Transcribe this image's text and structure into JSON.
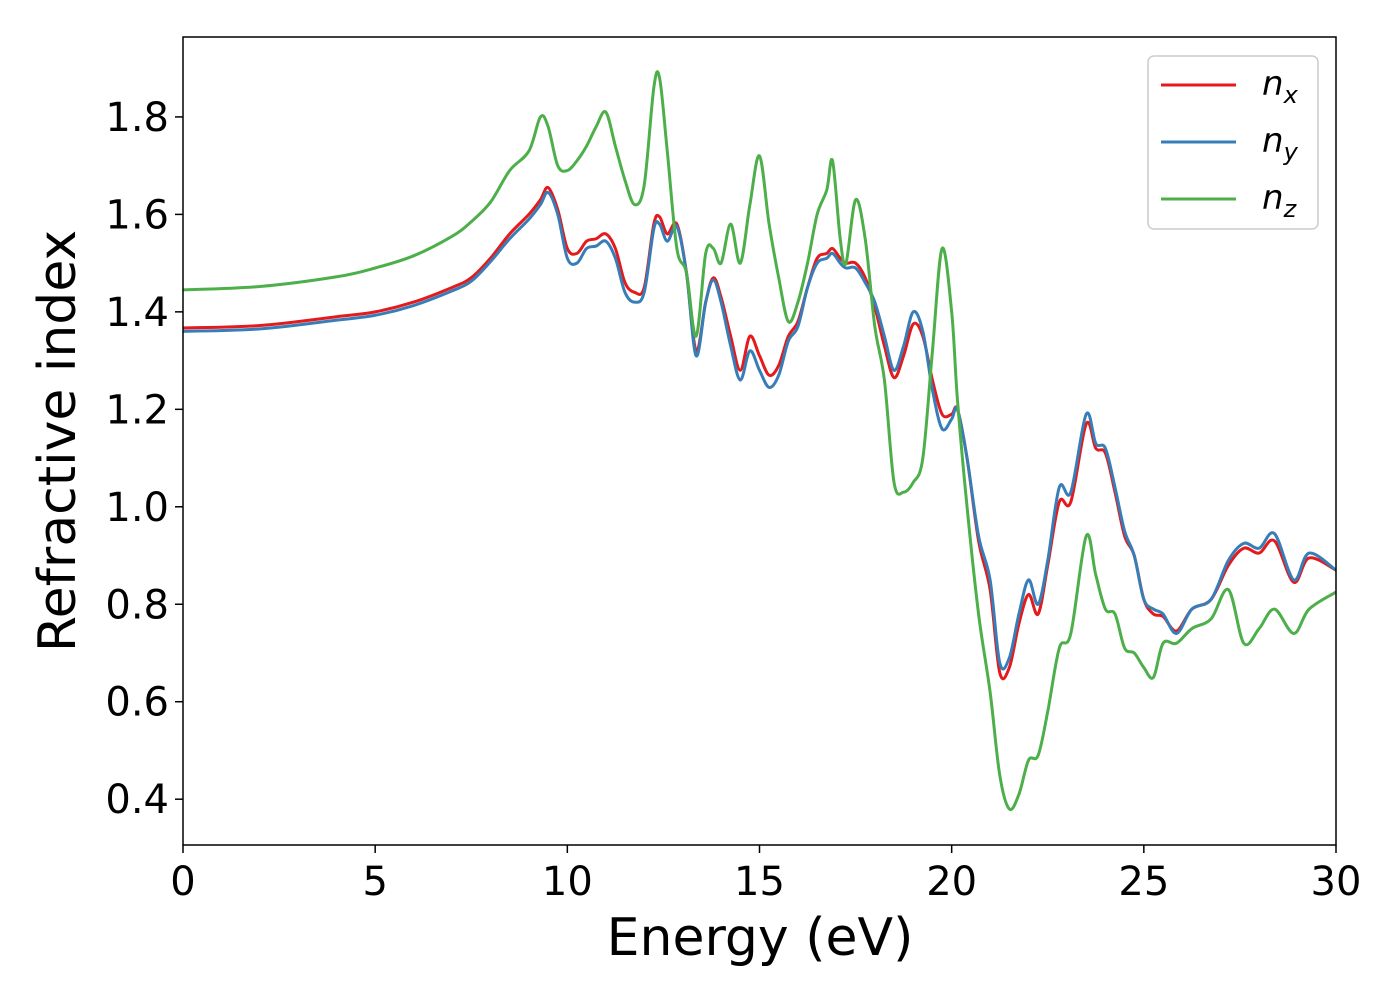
{
  "chart_data": {
    "type": "line",
    "xlabel": "Energy (eV)",
    "ylabel": "Refractive index",
    "x": [
      0,
      2,
      4,
      5,
      6,
      7,
      7.5,
      8,
      8.5,
      9,
      9.3,
      9.5,
      9.75,
      10,
      10.25,
      10.5,
      10.75,
      11,
      11.25,
      11.5,
      11.75,
      12,
      12.25,
      12.4,
      12.6,
      12.85,
      13.1,
      13.35,
      13.6,
      13.8,
      14,
      14.25,
      14.5,
      14.75,
      15,
      15.25,
      15.5,
      15.75,
      16,
      16.25,
      16.5,
      16.75,
      16.9,
      17.1,
      17.25,
      17.5,
      17.75,
      18,
      18.25,
      18.5,
      18.75,
      19,
      19.25,
      19.5,
      19.75,
      20,
      20.15,
      20.4,
      20.7,
      21,
      21.25,
      21.5,
      21.75,
      22,
      22.25,
      22.5,
      22.8,
      23.1,
      23.5,
      23.75,
      24,
      24.25,
      24.5,
      24.75,
      25,
      25.25,
      25.5,
      25.85,
      26.25,
      26.75,
      27.2,
      27.6,
      28,
      28.4,
      28.9,
      29.3,
      30
    ],
    "series": [
      {
        "name": "nx",
        "color": "#e41a1c",
        "values": [
          1.367,
          1.372,
          1.39,
          1.4,
          1.42,
          1.45,
          1.47,
          1.51,
          1.56,
          1.6,
          1.63,
          1.655,
          1.61,
          1.53,
          1.52,
          1.545,
          1.55,
          1.56,
          1.53,
          1.46,
          1.44,
          1.45,
          1.58,
          1.595,
          1.56,
          1.58,
          1.48,
          1.32,
          1.42,
          1.47,
          1.43,
          1.35,
          1.28,
          1.35,
          1.31,
          1.27,
          1.29,
          1.35,
          1.38,
          1.45,
          1.51,
          1.52,
          1.53,
          1.51,
          1.5,
          1.5,
          1.47,
          1.41,
          1.33,
          1.265,
          1.31,
          1.375,
          1.35,
          1.26,
          1.19,
          1.19,
          1.2,
          1.1,
          0.93,
          0.83,
          0.66,
          0.67,
          0.76,
          0.82,
          0.78,
          0.88,
          1.01,
          1.01,
          1.17,
          1.12,
          1.11,
          1.03,
          0.94,
          0.9,
          0.81,
          0.78,
          0.775,
          0.745,
          0.79,
          0.81,
          0.88,
          0.915,
          0.905,
          0.93,
          0.845,
          0.895,
          0.87
        ]
      },
      {
        "name": "ny",
        "color": "#377eb8",
        "values": [
          1.36,
          1.365,
          1.383,
          1.393,
          1.413,
          1.443,
          1.463,
          1.503,
          1.55,
          1.59,
          1.62,
          1.645,
          1.6,
          1.51,
          1.5,
          1.53,
          1.535,
          1.545,
          1.51,
          1.44,
          1.42,
          1.44,
          1.57,
          1.58,
          1.545,
          1.575,
          1.48,
          1.31,
          1.42,
          1.465,
          1.42,
          1.33,
          1.26,
          1.32,
          1.28,
          1.245,
          1.27,
          1.34,
          1.37,
          1.45,
          1.5,
          1.51,
          1.52,
          1.5,
          1.49,
          1.49,
          1.46,
          1.42,
          1.35,
          1.28,
          1.33,
          1.4,
          1.36,
          1.24,
          1.16,
          1.18,
          1.2,
          1.1,
          0.94,
          0.85,
          0.68,
          0.69,
          0.78,
          0.85,
          0.8,
          0.89,
          1.04,
          1.03,
          1.19,
          1.13,
          1.12,
          1.04,
          0.95,
          0.9,
          0.81,
          0.79,
          0.78,
          0.74,
          0.79,
          0.81,
          0.89,
          0.925,
          0.915,
          0.945,
          0.85,
          0.905,
          0.87
        ]
      },
      {
        "name": "nz",
        "color": "#4daf4a",
        "values": [
          1.445,
          1.452,
          1.472,
          1.49,
          1.515,
          1.555,
          1.585,
          1.625,
          1.69,
          1.73,
          1.8,
          1.78,
          1.7,
          1.69,
          1.71,
          1.74,
          1.78,
          1.81,
          1.74,
          1.67,
          1.62,
          1.66,
          1.86,
          1.88,
          1.73,
          1.53,
          1.48,
          1.35,
          1.52,
          1.53,
          1.5,
          1.58,
          1.5,
          1.62,
          1.72,
          1.58,
          1.47,
          1.38,
          1.42,
          1.5,
          1.6,
          1.65,
          1.71,
          1.55,
          1.5,
          1.63,
          1.55,
          1.37,
          1.26,
          1.05,
          1.03,
          1.05,
          1.1,
          1.32,
          1.53,
          1.4,
          1.22,
          1.0,
          0.78,
          0.62,
          0.45,
          0.38,
          0.41,
          0.48,
          0.49,
          0.58,
          0.71,
          0.74,
          0.94,
          0.86,
          0.79,
          0.78,
          0.71,
          0.7,
          0.67,
          0.65,
          0.72,
          0.72,
          0.75,
          0.77,
          0.83,
          0.72,
          0.75,
          0.79,
          0.74,
          0.79,
          0.825
        ]
      }
    ],
    "xlim": [
      0,
      30
    ],
    "xticks": [
      0,
      5,
      10,
      15,
      20,
      25,
      30
    ],
    "ylim": [
      0.306,
      1.964
    ],
    "yticks": [
      0.4,
      0.6,
      0.8,
      {
        "value": 1,
        "label": "1.0"
      },
      1.2,
      1.4,
      1.6,
      1.8
    ],
    "grid": false,
    "legend": "upper right"
  }
}
